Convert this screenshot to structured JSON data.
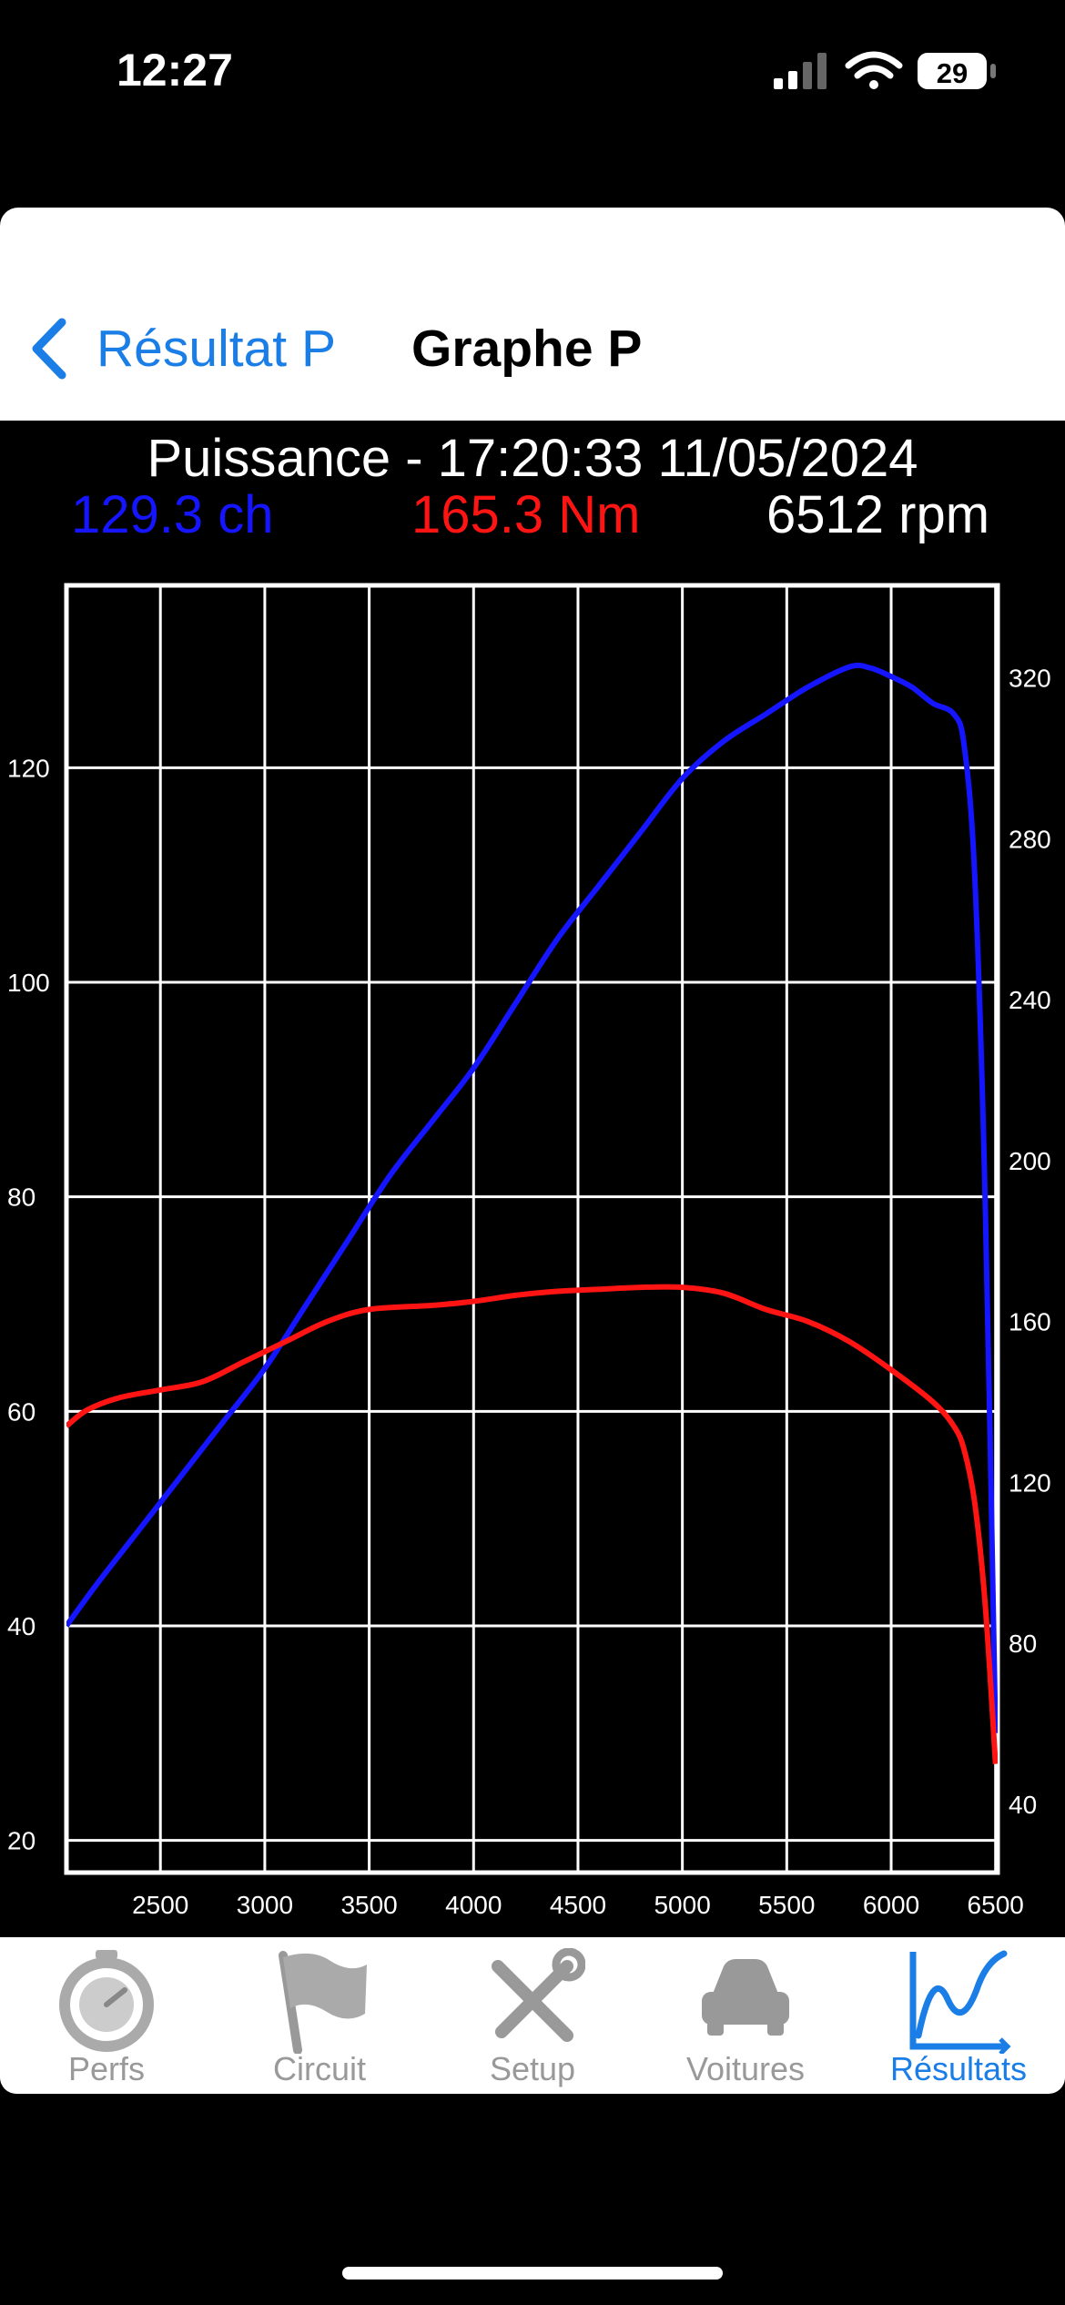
{
  "status": {
    "time": "12:27",
    "battery": "29"
  },
  "nav": {
    "back_label": "Résultat P",
    "title": "Graphe P"
  },
  "header": {
    "title": "Puissance - 17:20:33 11/05/2024",
    "power": "129.3 ch",
    "torque": "165.3 Nm",
    "rpm": "6512 rpm"
  },
  "colors": {
    "power": "#1515ff",
    "torque": "#ff1414",
    "accent": "#1a7ee6"
  },
  "chart_data": {
    "type": "line",
    "x_ticks": [
      2500,
      3000,
      3500,
      4000,
      4500,
      5000,
      5500,
      6000,
      6500
    ],
    "xlim": [
      2050,
      6510
    ],
    "y_left_ticks": [
      20,
      40,
      60,
      80,
      100,
      120
    ],
    "y_left_lim": [
      17,
      137
    ],
    "y_right_ticks": [
      40,
      80,
      120,
      160,
      200,
      240,
      280,
      320
    ],
    "y_right_lim": [
      23,
      343
    ],
    "grid": true,
    "series": [
      {
        "axis": "left",
        "color": "#1515ff",
        "x": [
          2050,
          2200,
          2400,
          2600,
          2800,
          3000,
          3200,
          3400,
          3600,
          3800,
          4000,
          4200,
          4400,
          4600,
          4800,
          5000,
          5200,
          5400,
          5600,
          5800,
          5900,
          6000,
          6100,
          6200,
          6300,
          6350,
          6400,
          6450,
          6500
        ],
        "y": [
          40,
          44,
          49,
          54,
          59,
          64,
          70,
          76,
          82,
          87,
          92,
          98,
          104,
          109,
          114,
          119,
          122.5,
          125,
          127.5,
          129.4,
          129.3,
          128.5,
          127.5,
          126,
          125,
          122,
          110,
          80,
          30
        ]
      },
      {
        "axis": "right",
        "color": "#ff1414",
        "x": [
          2050,
          2150,
          2300,
          2500,
          2700,
          2900,
          3100,
          3300,
          3500,
          3800,
          4000,
          4200,
          4400,
          4600,
          4800,
          5000,
          5200,
          5400,
          5600,
          5800,
          6000,
          6200,
          6300,
          6350,
          6400,
          6450,
          6500
        ],
        "y": [
          134,
          138,
          141,
          143,
          145,
          150,
          155,
          160,
          163,
          164,
          165,
          166.5,
          167.5,
          168,
          168.5,
          168.5,
          167,
          163,
          160,
          155,
          148,
          140,
          134,
          128,
          115,
          90,
          50
        ]
      }
    ]
  },
  "tabs": [
    {
      "label": "Perfs",
      "icon": "stopwatch-icon",
      "active": false
    },
    {
      "label": "Circuit",
      "icon": "flag-icon",
      "active": false
    },
    {
      "label": "Setup",
      "icon": "tools-icon",
      "active": false
    },
    {
      "label": "Voitures",
      "icon": "car-icon",
      "active": false
    },
    {
      "label": "Résultats",
      "icon": "chart-line-icon",
      "active": true
    }
  ]
}
